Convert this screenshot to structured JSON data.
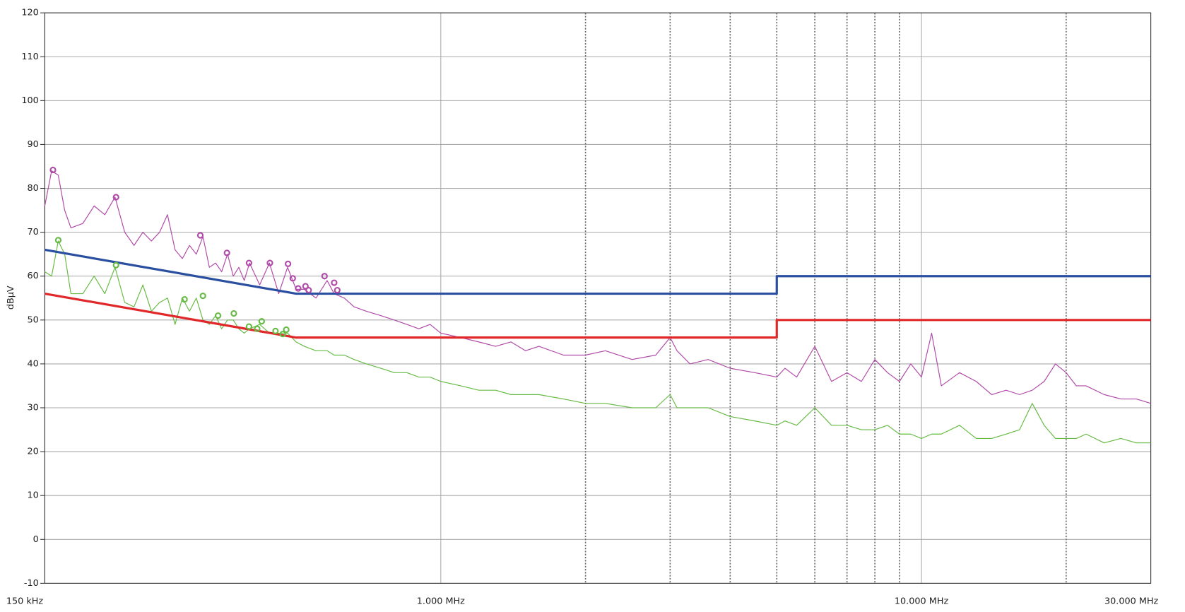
{
  "chart_data": {
    "type": "line",
    "y_label": "dBµV",
    "xscale": "log",
    "xlim": [
      0.15,
      30
    ],
    "ylim": [
      -10,
      120
    ],
    "xticks": [
      {
        "value": 0.15,
        "label": "150 kHz"
      },
      {
        "value": 1,
        "label": "1.000 MHz"
      },
      {
        "value": 10,
        "label": "10.000 MHz"
      },
      {
        "value": 30,
        "label": "30.000 MHz"
      }
    ],
    "xgrid_minor": [
      2,
      3,
      4,
      5,
      6,
      7,
      8,
      9,
      20
    ],
    "yticks": [
      -10,
      0,
      10,
      20,
      30,
      40,
      50,
      60,
      70,
      80,
      90,
      100,
      110,
      120
    ],
    "grid": true,
    "series": [
      {
        "style": "line",
        "color": "#b04aa8",
        "x": [
          0.15,
          0.155,
          0.16,
          0.165,
          0.17,
          0.18,
          0.19,
          0.2,
          0.21,
          0.22,
          0.23,
          0.24,
          0.25,
          0.26,
          0.27,
          0.28,
          0.29,
          0.3,
          0.31,
          0.32,
          0.33,
          0.34,
          0.35,
          0.36,
          0.37,
          0.38,
          0.39,
          0.4,
          0.42,
          0.44,
          0.46,
          0.48,
          0.5,
          0.52,
          0.55,
          0.58,
          0.6,
          0.63,
          0.66,
          0.7,
          0.75,
          0.8,
          0.85,
          0.9,
          0.95,
          1.0,
          1.1,
          1.2,
          1.3,
          1.4,
          1.5,
          1.6,
          1.8,
          2.0,
          2.2,
          2.5,
          2.8,
          3.0,
          3.1,
          3.3,
          3.6,
          4.0,
          4.5,
          5.0,
          5.2,
          5.5,
          6.0,
          6.5,
          7.0,
          7.5,
          8.0,
          8.5,
          9.0,
          9.5,
          10.0,
          10.5,
          11,
          12,
          13,
          14,
          15,
          16,
          17,
          18,
          19,
          20,
          21,
          22,
          24,
          26,
          28,
          30
        ],
        "values": [
          76,
          84,
          83,
          75,
          71,
          72,
          76,
          74,
          78,
          70,
          67,
          70,
          68,
          70,
          74,
          66,
          64,
          67,
          65,
          69,
          62,
          63,
          61,
          65,
          60,
          62,
          59,
          63,
          58,
          63,
          56,
          62,
          57,
          57,
          55,
          59,
          56,
          55,
          53,
          52,
          51,
          50,
          49,
          48,
          49,
          47,
          46,
          45,
          44,
          45,
          43,
          44,
          42,
          42,
          43,
          41,
          42,
          46,
          43,
          40,
          41,
          39,
          38,
          37,
          39,
          37,
          44,
          36,
          38,
          36,
          41,
          38,
          36,
          40,
          37,
          47,
          35,
          38,
          36,
          33,
          34,
          33,
          34,
          36,
          40,
          38,
          35,
          35,
          33,
          32,
          32,
          31
        ]
      },
      {
        "style": "line",
        "color": "#66bb44",
        "x": [
          0.15,
          0.155,
          0.16,
          0.165,
          0.17,
          0.18,
          0.19,
          0.2,
          0.21,
          0.22,
          0.23,
          0.24,
          0.25,
          0.26,
          0.27,
          0.28,
          0.29,
          0.3,
          0.31,
          0.32,
          0.33,
          0.34,
          0.35,
          0.36,
          0.37,
          0.38,
          0.39,
          0.4,
          0.42,
          0.44,
          0.46,
          0.48,
          0.5,
          0.52,
          0.55,
          0.58,
          0.6,
          0.63,
          0.66,
          0.7,
          0.75,
          0.8,
          0.85,
          0.9,
          0.95,
          1.0,
          1.1,
          1.2,
          1.3,
          1.4,
          1.5,
          1.6,
          1.8,
          2.0,
          2.2,
          2.5,
          2.8,
          3.0,
          3.1,
          3.3,
          3.6,
          4.0,
          4.5,
          5.0,
          5.2,
          5.5,
          6.0,
          6.5,
          7.0,
          7.5,
          8.0,
          8.5,
          9.0,
          9.5,
          10.0,
          10.5,
          11,
          12,
          13,
          14,
          15,
          16,
          17,
          18,
          19,
          20,
          21,
          22,
          24,
          26,
          28,
          30
        ],
        "values": [
          61,
          60,
          68,
          65,
          56,
          56,
          60,
          56,
          62,
          54,
          53,
          58,
          52,
          54,
          55,
          49,
          55,
          52,
          55,
          50,
          49,
          51,
          48,
          50,
          50,
          48,
          47,
          48,
          49,
          47,
          47,
          47,
          45,
          44,
          43,
          43,
          42,
          42,
          41,
          40,
          39,
          38,
          38,
          37,
          37,
          36,
          35,
          34,
          34,
          33,
          33,
          33,
          32,
          31,
          31,
          30,
          30,
          33,
          30,
          30,
          30,
          28,
          27,
          26,
          27,
          26,
          30,
          26,
          26,
          25,
          25,
          26,
          24,
          24,
          23,
          24,
          24,
          26,
          23,
          23,
          24,
          25,
          31,
          26,
          23,
          23,
          23,
          24,
          22,
          23,
          22,
          22
        ]
      },
      {
        "style": "line",
        "color": "#2a4fa0",
        "width": 3,
        "x": [
          0.15,
          0.5,
          5,
          5,
          30
        ],
        "values": [
          66,
          56,
          56,
          60,
          60
        ]
      },
      {
        "style": "line",
        "color": "#e0282a",
        "width": 3,
        "x": [
          0.15,
          0.5,
          5,
          5,
          30
        ],
        "values": [
          56,
          46,
          46,
          50,
          50
        ]
      },
      {
        "style": "marker",
        "color": "#b04aa8",
        "x": [
          0.156,
          0.211,
          0.316,
          0.359,
          0.399,
          0.441,
          0.481,
          0.492,
          0.505,
          0.523,
          0.531,
          0.573,
          0.6,
          0.609
        ],
        "values": [
          84.2,
          78,
          69.3,
          65.3,
          63,
          63,
          62.8,
          59.5,
          57.2,
          57.7,
          56.8,
          60,
          58.5,
          56.8
        ]
      },
      {
        "style": "marker",
        "color": "#66bb44",
        "x": [
          0.16,
          0.211,
          0.293,
          0.32,
          0.344,
          0.371,
          0.399,
          0.415,
          0.424,
          0.453,
          0.469,
          0.477
        ],
        "values": [
          68.2,
          62.5,
          54.7,
          55.5,
          51,
          51.5,
          48.5,
          48,
          49.7,
          47.5,
          46.8,
          47.8
        ]
      }
    ]
  }
}
